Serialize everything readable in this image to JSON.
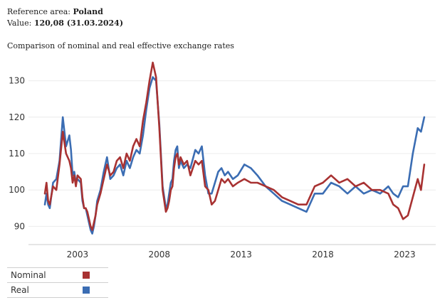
{
  "header": {
    "area_label": "Reference area:",
    "area_value": "Poland",
    "value_label": "Value:",
    "value_value": "120,08 (31.03.2024)"
  },
  "chart_data": {
    "type": "line",
    "title": "Comparison of nominal and real effective exchange rates",
    "xlabel": "",
    "ylabel": "",
    "xlim": [
      2000.0,
      2024.9
    ],
    "ylim": [
      85,
      135
    ],
    "yticks": [
      90,
      100,
      110,
      120,
      130
    ],
    "xticks": [
      2003,
      2008,
      2013,
      2018,
      2023
    ],
    "grid": true,
    "legend_position": "bottom-left",
    "series": [
      {
        "name": "Nominal",
        "color": "#a83232",
        "x": [
          2001.0,
          2001.1,
          2001.2,
          2001.3,
          2001.5,
          2001.7,
          2001.9,
          2002.1,
          2002.3,
          2002.5,
          2002.6,
          2002.7,
          2002.8,
          2002.9,
          2003.0,
          2003.2,
          2003.3,
          2003.4,
          2003.5,
          2003.6,
          2003.7,
          2003.8,
          2003.9,
          2004.0,
          2004.1,
          2004.2,
          2004.4,
          2004.6,
          2004.8,
          2005.0,
          2005.2,
          2005.4,
          2005.6,
          2005.8,
          2006.0,
          2006.2,
          2006.4,
          2006.6,
          2006.8,
          2007.0,
          2007.2,
          2007.4,
          2007.6,
          2007.8,
          2008.0,
          2008.2,
          2008.4,
          2008.5,
          2008.6,
          2008.7,
          2008.8,
          2008.9,
          2009.0,
          2009.1,
          2009.2,
          2009.3,
          2009.5,
          2009.7,
          2009.9,
          2010.2,
          2010.4,
          2010.6,
          2010.8,
          2011.0,
          2011.2,
          2011.4,
          2011.6,
          2011.8,
          2012.0,
          2012.2,
          2012.5,
          2012.8,
          2013.2,
          2013.6,
          2014.0,
          2014.5,
          2015.0,
          2015.5,
          2016.0,
          2016.5,
          2017.0,
          2017.5,
          2018.0,
          2018.5,
          2019.0,
          2019.5,
          2020.0,
          2020.5,
          2021.0,
          2021.5,
          2022.0,
          2022.3,
          2022.6,
          2022.9,
          2023.2,
          2023.5,
          2023.8,
          2024.0,
          2024.2
        ],
        "values": [
          99,
          102,
          97,
          96,
          101,
          100,
          107,
          116,
          110,
          108,
          106,
          102,
          104,
          101,
          104,
          103,
          98,
          95,
          95,
          94,
          92,
          90,
          89,
          91,
          93,
          96,
          99,
          103,
          107,
          104,
          105,
          108,
          109,
          106,
          110,
          108,
          112,
          114,
          112,
          119,
          124,
          130,
          135,
          131,
          117,
          100,
          94,
          95,
          97,
          100,
          101,
          106,
          109,
          110,
          107,
          109,
          107,
          108,
          104,
          108,
          107,
          108,
          101,
          100,
          96,
          97,
          100,
          103,
          102,
          103,
          101,
          102,
          103,
          102,
          102,
          101,
          100,
          98,
          97,
          96,
          96,
          101,
          102,
          104,
          102,
          103,
          101,
          102,
          100,
          100,
          99,
          96,
          95,
          92,
          93,
          98,
          103,
          100,
          107
        ]
      },
      {
        "name": "Real",
        "color": "#3b6db3",
        "x": [
          2001.0,
          2001.1,
          2001.2,
          2001.3,
          2001.5,
          2001.7,
          2001.9,
          2002.1,
          2002.3,
          2002.5,
          2002.6,
          2002.7,
          2002.8,
          2002.9,
          2003.0,
          2003.2,
          2003.3,
          2003.4,
          2003.5,
          2003.6,
          2003.7,
          2003.8,
          2003.9,
          2004.0,
          2004.1,
          2004.2,
          2004.4,
          2004.6,
          2004.8,
          2005.0,
          2005.2,
          2005.4,
          2005.6,
          2005.8,
          2006.0,
          2006.2,
          2006.4,
          2006.6,
          2006.8,
          2007.0,
          2007.2,
          2007.4,
          2007.6,
          2007.8,
          2008.0,
          2008.2,
          2008.4,
          2008.5,
          2008.6,
          2008.7,
          2008.8,
          2008.9,
          2009.0,
          2009.1,
          2009.2,
          2009.3,
          2009.5,
          2009.7,
          2009.9,
          2010.2,
          2010.4,
          2010.6,
          2010.8,
          2011.0,
          2011.2,
          2011.4,
          2011.6,
          2011.8,
          2012.0,
          2012.2,
          2012.5,
          2012.8,
          2013.2,
          2013.6,
          2014.0,
          2014.5,
          2015.0,
          2015.5,
          2016.0,
          2016.5,
          2017.0,
          2017.5,
          2018.0,
          2018.5,
          2019.0,
          2019.5,
          2020.0,
          2020.5,
          2021.0,
          2021.5,
          2022.0,
          2022.3,
          2022.6,
          2022.9,
          2023.2,
          2023.5,
          2023.8,
          2024.0,
          2024.2
        ],
        "values": [
          96,
          99,
          96,
          95,
          102,
          103,
          108,
          120,
          112,
          115,
          111,
          104,
          105,
          102,
          103,
          102,
          97,
          95,
          95,
          93,
          91,
          89,
          88,
          90,
          93,
          97,
          100,
          105,
          109,
          103,
          104,
          106,
          107,
          104,
          108,
          106,
          109,
          111,
          110,
          115,
          122,
          128,
          131,
          130,
          118,
          101,
          95,
          96,
          99,
          102,
          103,
          108,
          111,
          112,
          106,
          108,
          106,
          107,
          106,
          111,
          110,
          112,
          104,
          99,
          99,
          102,
          105,
          106,
          104,
          105,
          103,
          104,
          107,
          106,
          104,
          101,
          99,
          97,
          96,
          95,
          94,
          99,
          99,
          102,
          101,
          99,
          101,
          99,
          100,
          99,
          101,
          99,
          98,
          101,
          101,
          110,
          117,
          116,
          120
        ]
      }
    ]
  }
}
